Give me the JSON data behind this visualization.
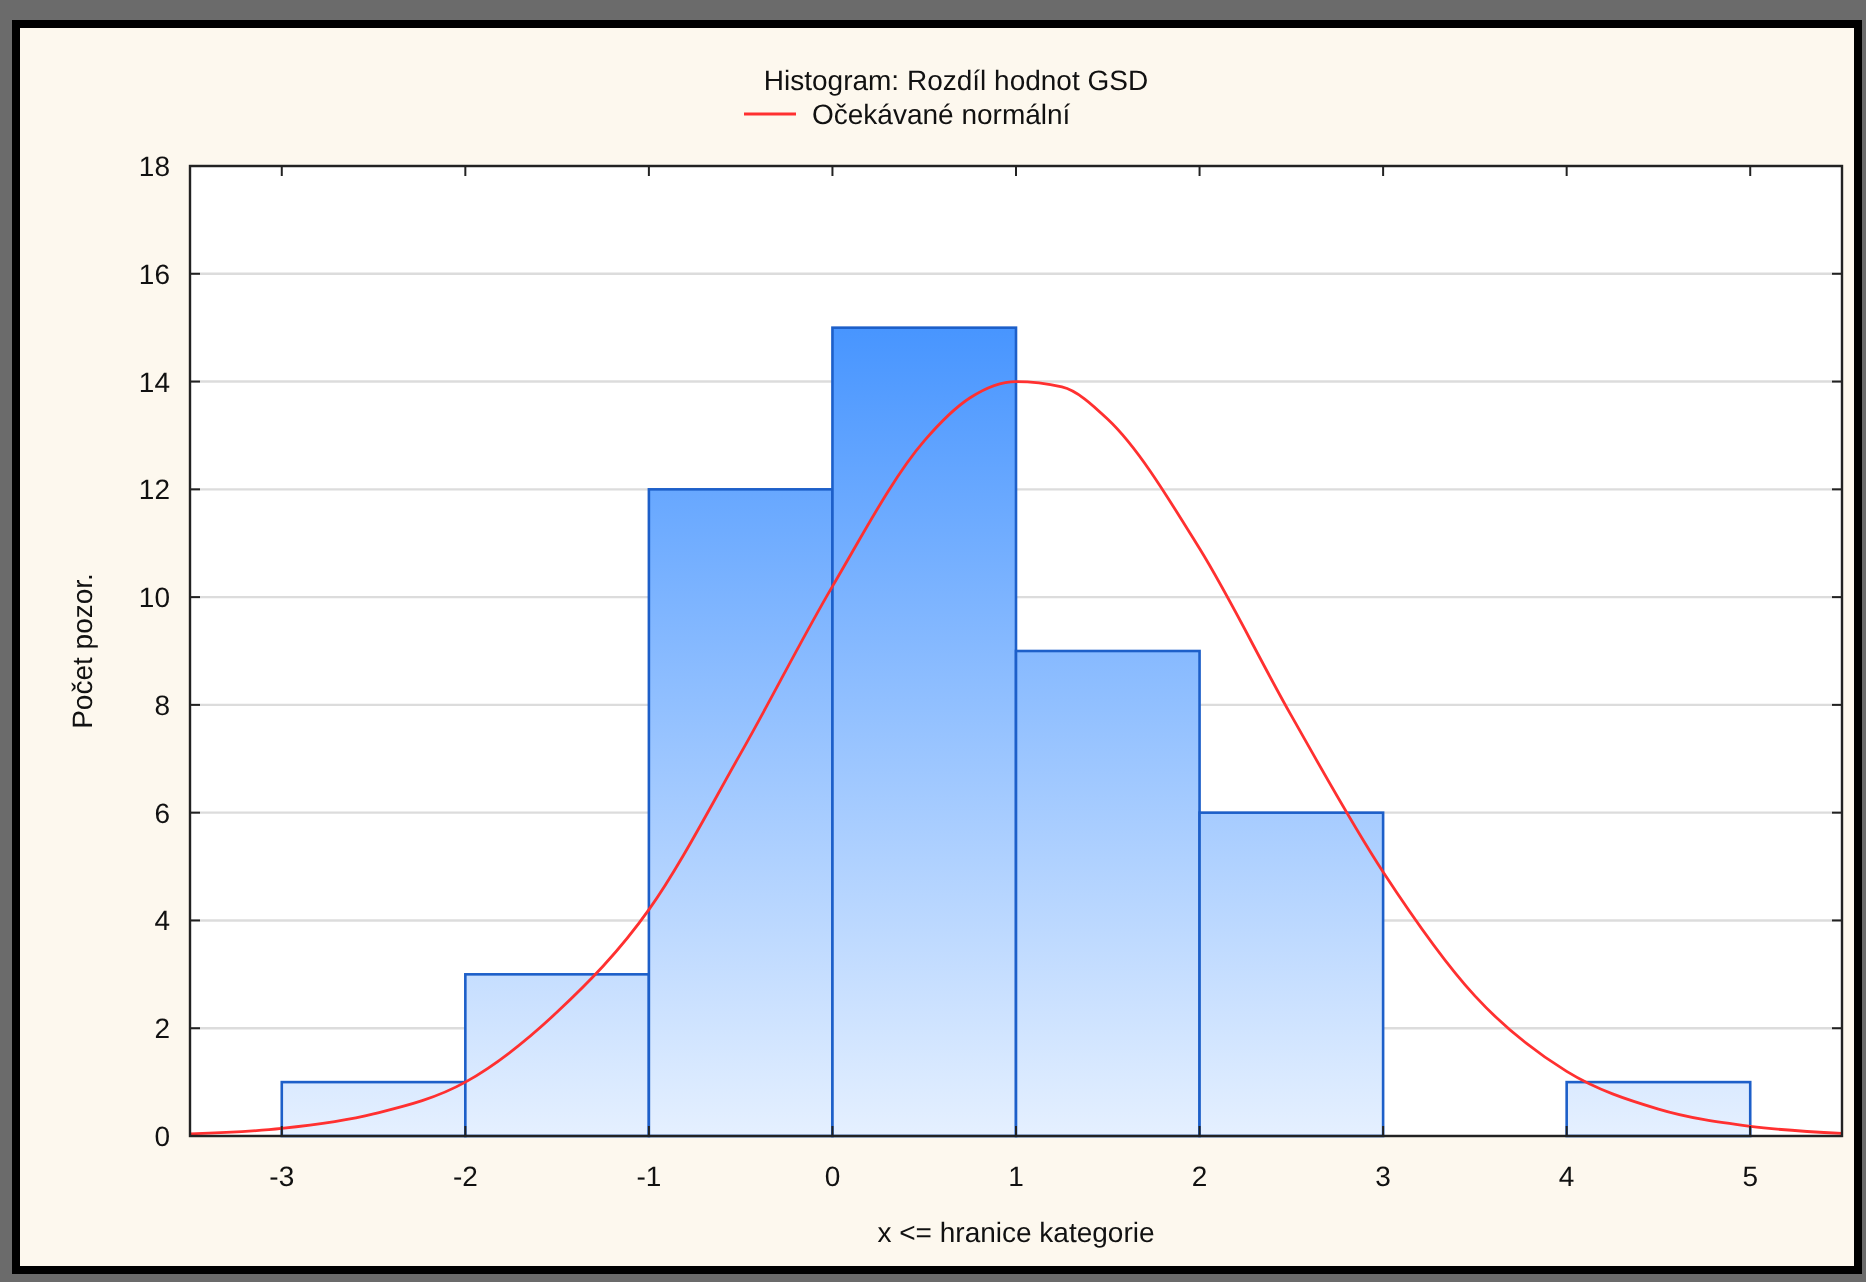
{
  "chart_data": {
    "type": "histogram",
    "title": "Histogram: Rozdíl hodnot GSD",
    "xlabel": "x <= hranice kategorie",
    "ylabel": "Počet pozor.",
    "bins": [
      -3,
      -2,
      -1,
      0,
      1,
      2,
      3,
      4,
      5
    ],
    "series": [
      {
        "color": "#1d5fc9",
        "values": [
          1,
          3,
          12,
          15,
          9,
          6,
          0,
          1
        ]
      },
      {
        "type": "line",
        "name": "Očekávané normální",
        "color": "#ff3030",
        "x": [
          -3.5,
          -3,
          -2.5,
          -2,
          -1.5,
          -1,
          -0.5,
          0,
          0.5,
          0.75,
          1,
          1.25,
          1.5,
          2,
          2.5,
          3,
          3.5,
          4,
          4.5,
          5,
          5.5
        ],
        "values": [
          0.04,
          0.14,
          0.41,
          1.0,
          2.3,
          4.2,
          7.1,
          10.2,
          12.9,
          13.7,
          14.0,
          13.9,
          13.3,
          10.9,
          7.8,
          4.9,
          2.6,
          1.2,
          0.5,
          0.18,
          0.05
        ]
      }
    ],
    "xlim": [
      -3.5,
      5.5
    ],
    "xticks": [
      -3,
      -2,
      -1,
      0,
      1,
      2,
      3,
      4,
      5
    ],
    "ylim": [
      0,
      18
    ],
    "yticks": [
      0,
      2,
      4,
      6,
      8,
      10,
      12,
      14,
      16,
      18
    ],
    "grid": "y",
    "legend": "top",
    "line_style": "solid",
    "marker": "none"
  }
}
